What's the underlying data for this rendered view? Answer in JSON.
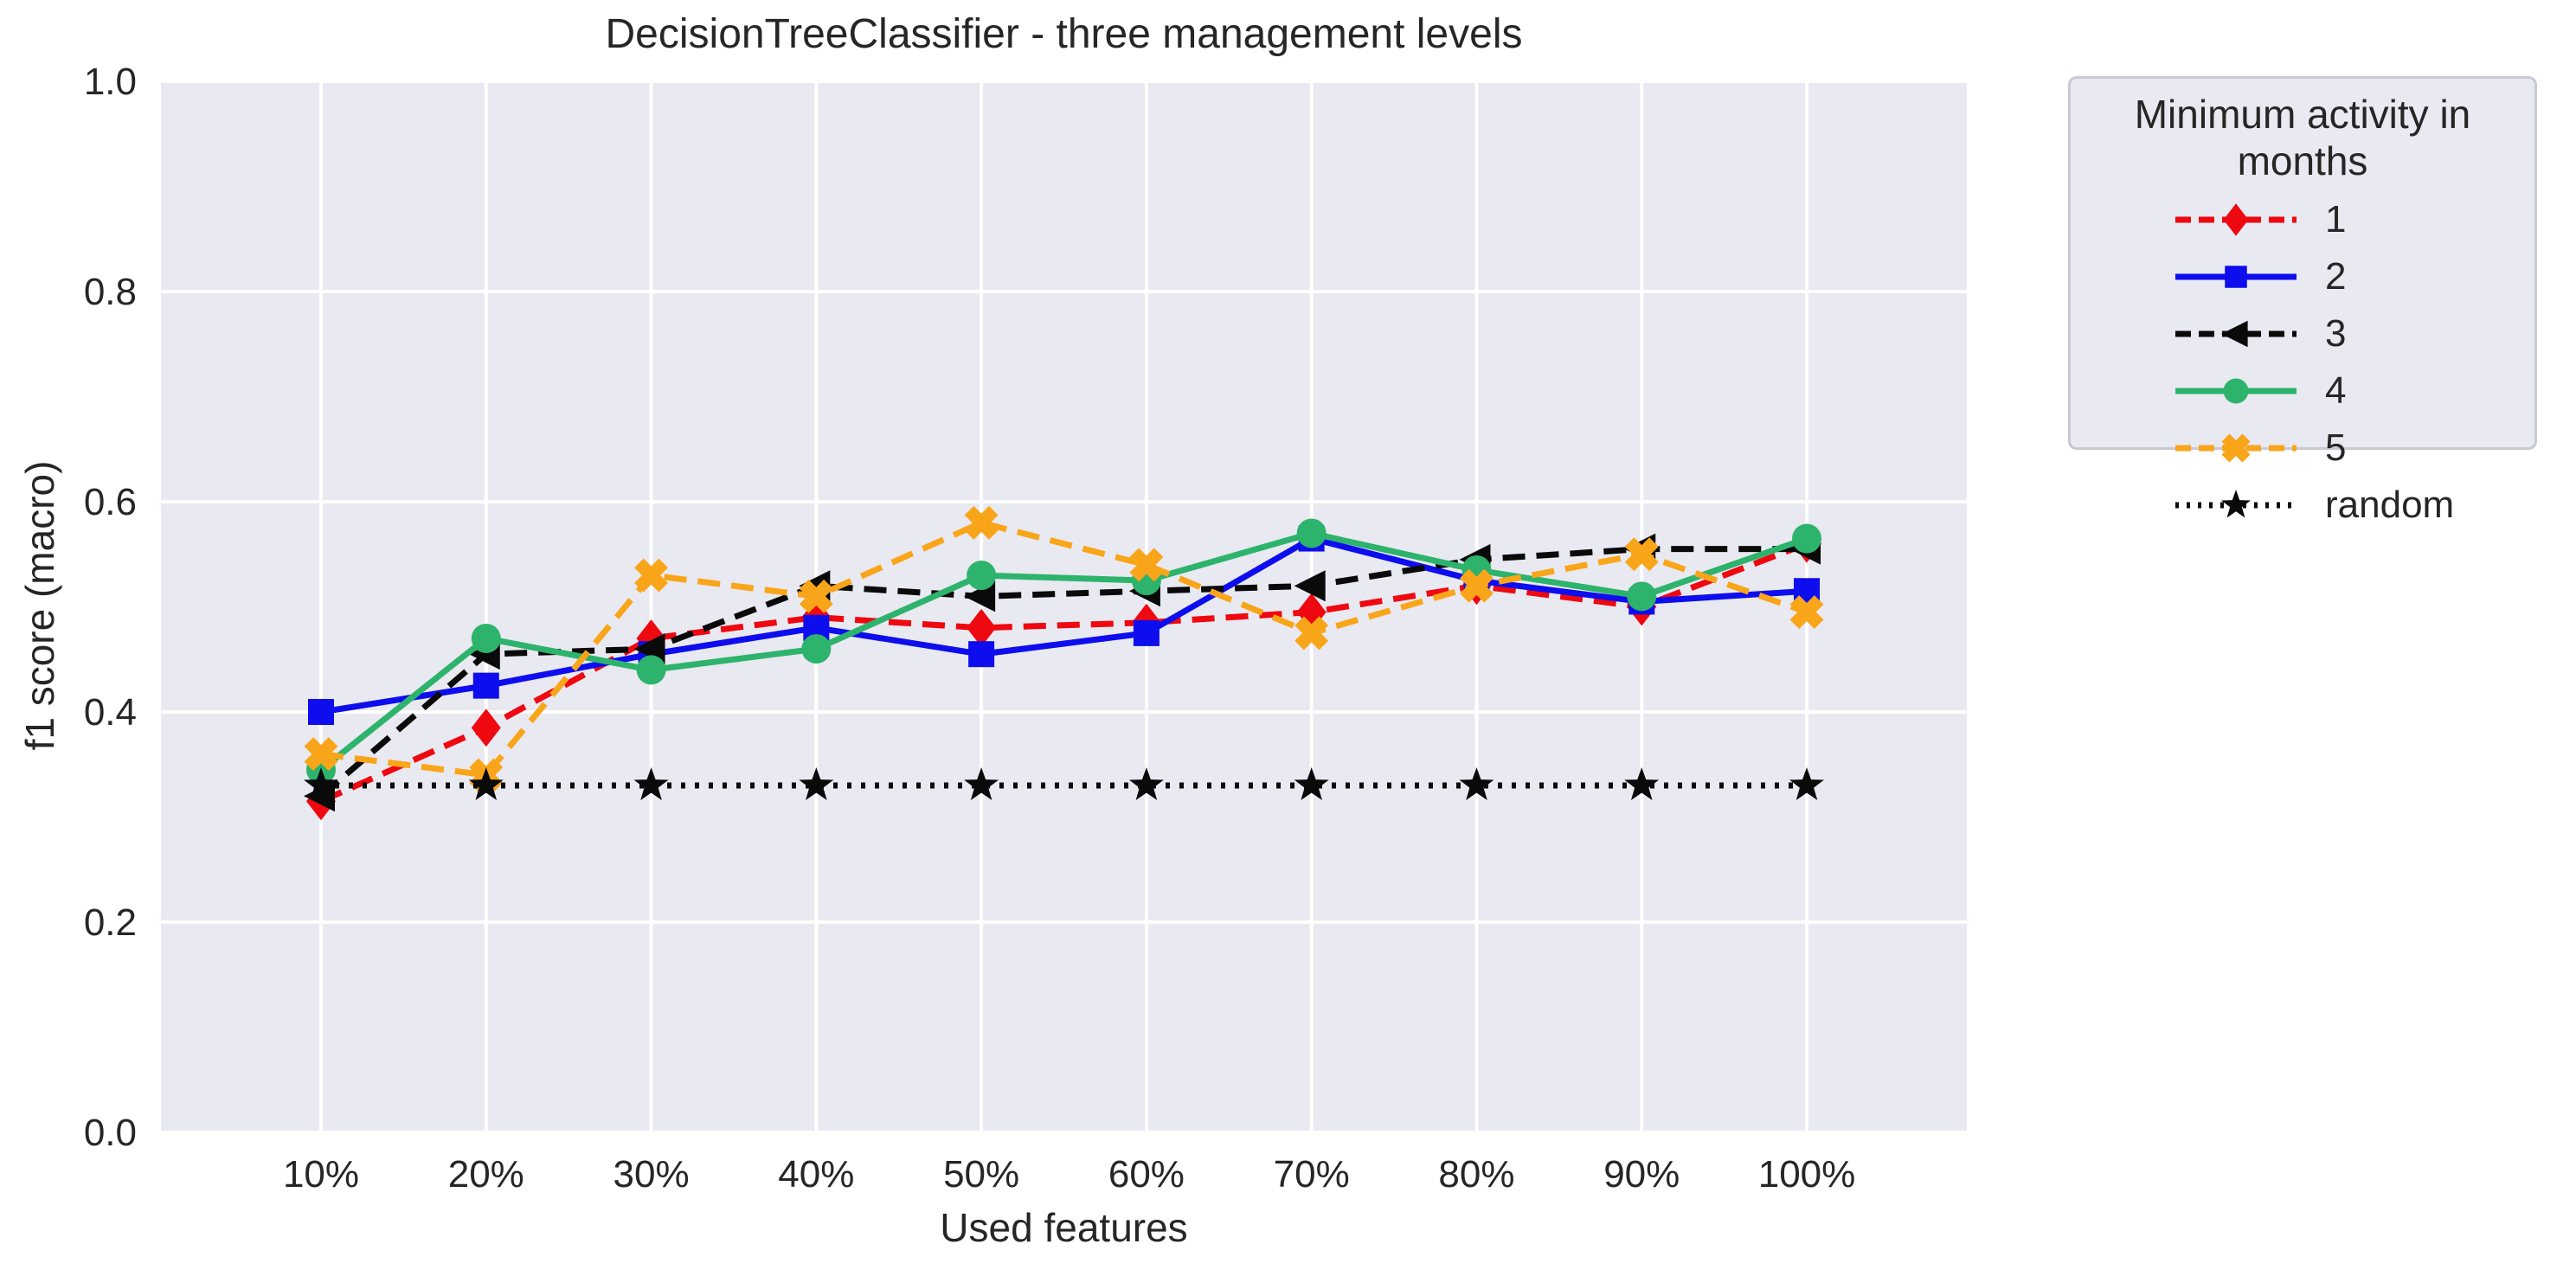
{
  "title": "DecisionTreeClassifier - three management levels",
  "axes": {
    "xlabel": "Used features",
    "ylabel": "f1 score (macro)",
    "x_tick_labels": [
      "10%",
      "20%",
      "30%",
      "40%",
      "50%",
      "60%",
      "70%",
      "80%",
      "90%",
      "100%"
    ],
    "y_tick_labels": [
      "0.0",
      "0.2",
      "0.4",
      "0.6",
      "0.8",
      "1.0"
    ]
  },
  "legend": {
    "title": "Minimum activity in months",
    "entries": [
      "1",
      "2",
      "3",
      "4",
      "5",
      "random"
    ]
  },
  "colors": {
    "plot_bg": "#e9e9f1",
    "grid": "#ffffff",
    "text": "#262626",
    "legend_bg": "#e9e9f1",
    "legend_border": "#c9c9d4"
  },
  "chart_data": {
    "type": "line",
    "title": "DecisionTreeClassifier - three management levels",
    "xlabel": "Used features",
    "ylabel": "f1 score (macro)",
    "ylim": [
      0.0,
      1.0
    ],
    "y_ticks": [
      0.0,
      0.2,
      0.4,
      0.6,
      0.8,
      1.0
    ],
    "grid": true,
    "legend_title": "Minimum activity in months",
    "legend_position": "outside upper right",
    "categories": [
      "10%",
      "20%",
      "30%",
      "40%",
      "50%",
      "60%",
      "70%",
      "80%",
      "90%",
      "100%"
    ],
    "series": [
      {
        "name": "1",
        "color": "#ee0810",
        "linestyle": "dashed",
        "marker": "diamond",
        "values": [
          0.315,
          0.385,
          0.47,
          0.49,
          0.48,
          0.485,
          0.495,
          0.52,
          0.5,
          0.56
        ]
      },
      {
        "name": "2",
        "color": "#0d0dee",
        "linestyle": "solid",
        "marker": "square",
        "values": [
          0.4,
          0.425,
          0.455,
          0.48,
          0.455,
          0.475,
          0.565,
          0.525,
          0.505,
          0.515
        ]
      },
      {
        "name": "3",
        "color": "#0a0a0a",
        "linestyle": "dashed",
        "marker": "triangle-left",
        "values": [
          0.32,
          0.455,
          0.46,
          0.52,
          0.51,
          0.515,
          0.52,
          0.545,
          0.555,
          0.555
        ]
      },
      {
        "name": "4",
        "color": "#2db36c",
        "linestyle": "solid",
        "marker": "circle",
        "values": [
          0.345,
          0.47,
          0.44,
          0.46,
          0.53,
          0.525,
          0.57,
          0.535,
          0.51,
          0.565
        ]
      },
      {
        "name": "5",
        "color": "#f9a51a",
        "linestyle": "dashed",
        "marker": "x-filled",
        "values": [
          0.36,
          0.34,
          0.53,
          0.51,
          0.58,
          0.54,
          0.475,
          0.52,
          0.55,
          0.495
        ]
      },
      {
        "name": "random",
        "color": "#0a0a0a",
        "linestyle": "dotted",
        "marker": "star",
        "values": [
          0.33,
          0.33,
          0.33,
          0.33,
          0.33,
          0.33,
          0.33,
          0.33,
          0.33,
          0.33
        ]
      }
    ]
  }
}
